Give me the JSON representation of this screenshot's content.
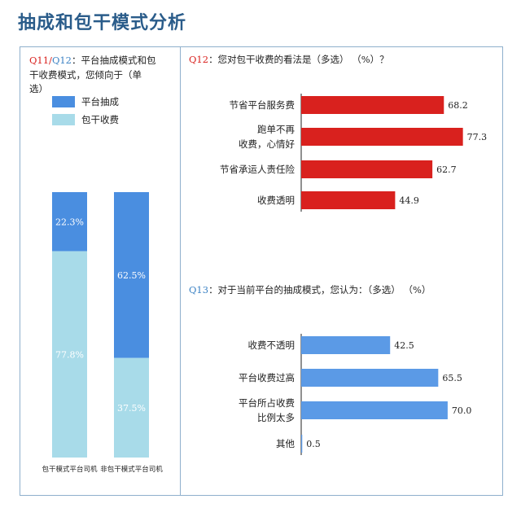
{
  "page_title": "抽成和包干模式分析",
  "left_panel": {
    "question_line1_q11": "Q11/",
    "question_line1_q12": "Q12",
    "question_line1_text": "：平台抽成模式和包",
    "question_line2": "干收费模式，您倾向于（单",
    "question_line3": "选）"
  },
  "q12": {
    "label": "Q12",
    "text": "：您对包干收费的看法是（多选）  （%）？"
  },
  "q13": {
    "label": "Q13",
    "text": "：对于当前平台的抽成模式，您认为：（多选）  （%）"
  },
  "colors": {
    "title": "#2a5c8a",
    "red_bar": "#d9211e",
    "blue_bar": "#5b9ae6",
    "light_blue": "#a8dbe9",
    "dark_blue": "#4a8ee0",
    "question_label": "#d9211e",
    "question_label_blue": "#3b82c4"
  },
  "chart_data": [
    {
      "type": "bar",
      "stacked": true,
      "categories": [
        "包干模式平台司机",
        "非包干模式平台司机"
      ],
      "series": [
        {
          "name": "平台抽成",
          "values": [
            22.3,
            62.5
          ],
          "labels": [
            "22.3%",
            "62.5%"
          ]
        },
        {
          "name": "包干收费",
          "values": [
            77.8,
            37.5
          ],
          "labels": [
            "77.8%",
            "37.5%"
          ]
        }
      ],
      "legend_position": "top"
    },
    {
      "type": "bar",
      "orientation": "horizontal",
      "categories": [
        [
          "节省平台服务费"
        ],
        [
          "跑单不再",
          "收费，心情好"
        ],
        [
          "节省承运人责任险"
        ],
        [
          "收费透明"
        ]
      ],
      "values": [
        68.2,
        77.3,
        62.7,
        44.9
      ],
      "value_labels": [
        "68.2",
        "77.3",
        "62.7",
        "44.9"
      ],
      "xlim": [
        0,
        80
      ]
    },
    {
      "type": "bar",
      "orientation": "horizontal",
      "categories": [
        [
          "收费不透明"
        ],
        [
          "平台收费过高"
        ],
        [
          "平台所占收费",
          "比例太多"
        ],
        [
          "其他"
        ]
      ],
      "values": [
        42.5,
        65.5,
        70.0,
        0.5
      ],
      "value_labels": [
        "42.5",
        "65.5",
        "70.0",
        "0.5"
      ],
      "xlim": [
        0,
        80
      ]
    }
  ]
}
